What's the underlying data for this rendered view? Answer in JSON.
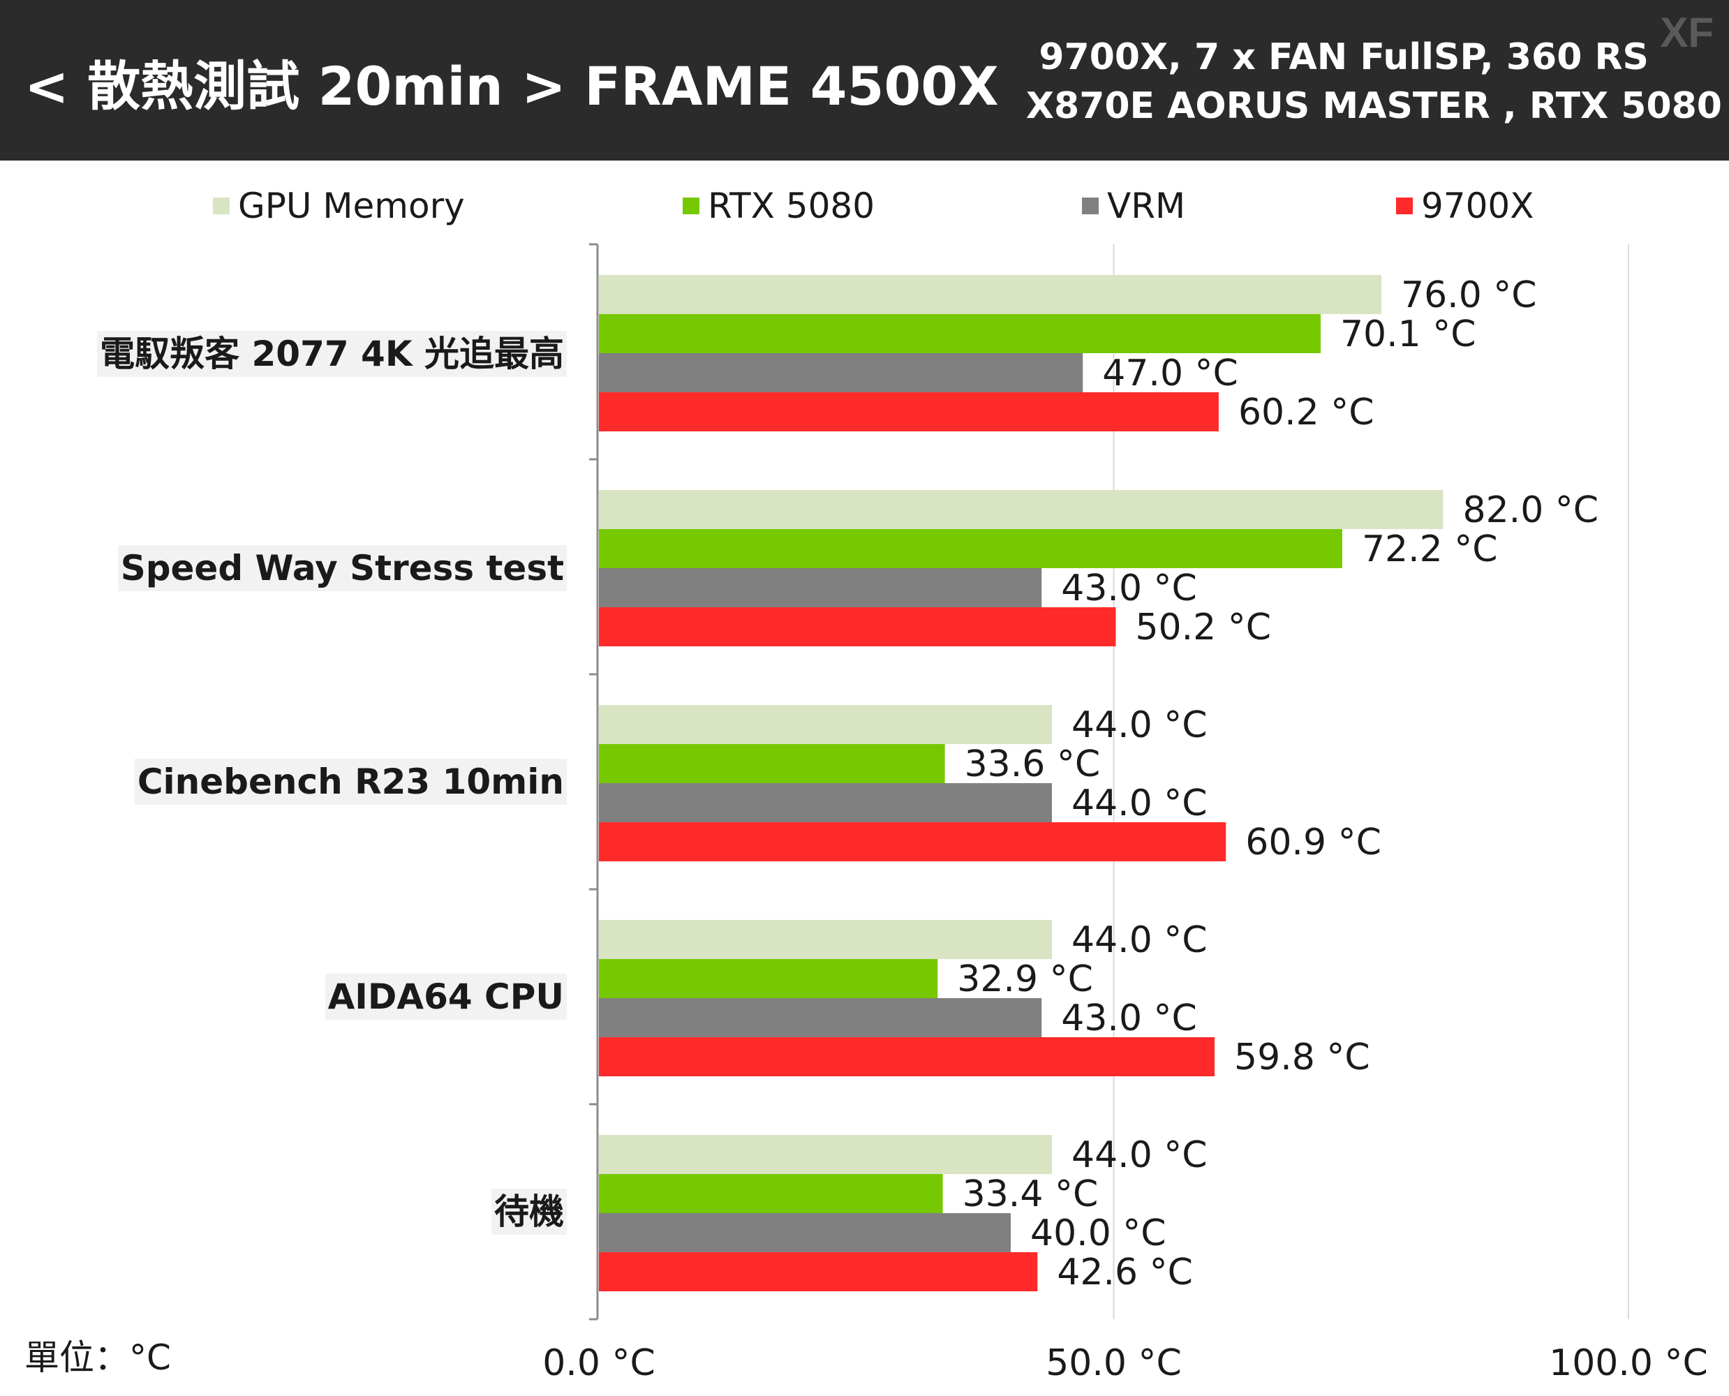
{
  "header": {
    "title": "< 散熱測試 20min > FRAME 4500X",
    "subtitle_line1": "9700X, 7 x FAN FullSP, 360 RS",
    "subtitle_line2": "X870E AORUS MASTER , RTX 5080",
    "watermark": "XF"
  },
  "unit_label": "單位：°C",
  "chart_data": {
    "type": "bar",
    "orientation": "horizontal",
    "categories": [
      "電馭叛客 2077 4K 光追最高",
      "Speed Way Stress test",
      "Cinebench R23 10min",
      "AIDA64 CPU",
      "待機"
    ],
    "series": [
      {
        "name": "GPU Memory",
        "color": "#d8e4c2",
        "values": [
          76.0,
          82.0,
          44.0,
          44.0,
          44.0
        ]
      },
      {
        "name": "RTX 5080",
        "color": "#76c800",
        "values": [
          70.1,
          72.2,
          33.6,
          32.9,
          33.4
        ]
      },
      {
        "name": "VRM",
        "color": "#808080",
        "values": [
          47.0,
          43.0,
          44.0,
          43.0,
          40.0
        ]
      },
      {
        "name": "9700X",
        "color": "#ff2a2a",
        "values": [
          60.2,
          50.2,
          60.9,
          59.8,
          42.6
        ]
      }
    ],
    "data_labels": [
      [
        "76.0 °C",
        "82.0 °C",
        "44.0 °C",
        "44.0 °C",
        "44.0 °C"
      ],
      [
        "70.1 °C",
        "72.2 °C",
        "33.6 °C",
        "32.9 °C",
        "33.4 °C"
      ],
      [
        "47.0 °C",
        "43.0 °C",
        "44.0 °C",
        "43.0 °C",
        "40.0 °C"
      ],
      [
        "60.2 °C",
        "50.2 °C",
        "60.9 °C",
        "59.8 °C",
        "42.6 °C"
      ]
    ],
    "xlim": [
      0,
      100
    ],
    "xticks": [
      0,
      50,
      100
    ],
    "xtick_labels": [
      "0.0 °C",
      "50.0 °C",
      "100.0 °C"
    ],
    "grid": true,
    "legend_position": "top"
  }
}
